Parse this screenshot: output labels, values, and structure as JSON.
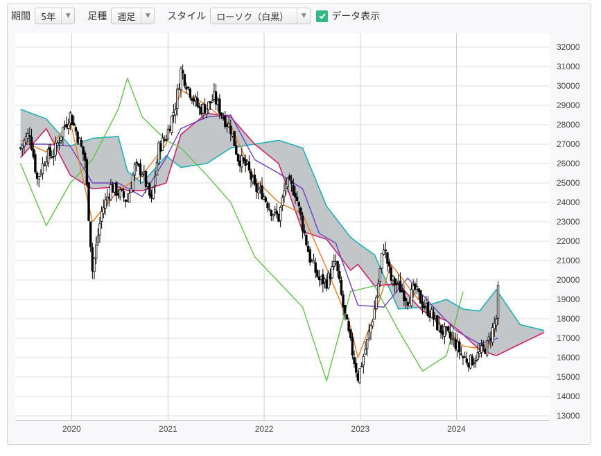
{
  "toolbar": {
    "period_label": "期間",
    "period_value": "5年",
    "interval_label": "足種",
    "interval_value": "週足",
    "style_label": "スタイル",
    "style_value": "ローソク（白黒）",
    "show_data_label": "データ表示",
    "show_data_checked": true
  },
  "chart_data": {
    "type": "candlestick",
    "indicator": "ichimoku",
    "x_tick_labels": [
      "2020",
      "2021",
      "2022",
      "2023",
      "2024"
    ],
    "y_tick_labels": [
      "32000",
      "31000",
      "30000",
      "29000",
      "28000",
      "27000",
      "26000",
      "25000",
      "24000",
      "23000",
      "22000",
      "21000",
      "20000",
      "19000",
      "18000",
      "17000",
      "16000",
      "15000",
      "14000",
      "13000"
    ],
    "ylim": [
      13000,
      32000
    ],
    "grid": true,
    "colors": {
      "price": "#000000",
      "conversion_line": "#f07820",
      "base_line": "#6a3fc4",
      "lagging_span": "#55c040",
      "leading_span_a": "#20b0b8",
      "leading_span_b": "#d0206a",
      "cloud_fill": "#b9bcbe"
    },
    "close_path": [
      [
        "2019-06-21",
        26800
      ],
      [
        "2019-07-26",
        27600
      ],
      [
        "2019-08-23",
        25200
      ],
      [
        "2019-09-27",
        26400
      ],
      [
        "2019-10-25",
        26500
      ],
      [
        "2019-11-29",
        27800
      ],
      [
        "2019-12-27",
        28500
      ],
      [
        "2020-01-24",
        27400
      ],
      [
        "2020-02-21",
        26200
      ],
      [
        "2020-03-20",
        20500
      ],
      [
        "2020-04-24",
        23500
      ],
      [
        "2020-05-29",
        24800
      ],
      [
        "2020-06-26",
        24500
      ],
      [
        "2020-07-31",
        24100
      ],
      [
        "2020-08-28",
        25800
      ],
      [
        "2020-09-25",
        25600
      ],
      [
        "2020-10-30",
        24000
      ],
      [
        "2020-11-27",
        26800
      ],
      [
        "2020-12-25",
        27400
      ],
      [
        "2021-01-29",
        29000
      ],
      [
        "2021-02-19",
        30800
      ],
      [
        "2021-03-26",
        29700
      ],
      [
        "2021-04-30",
        28800
      ],
      [
        "2021-05-28",
        28900
      ],
      [
        "2021-06-25",
        29400
      ],
      [
        "2021-07-30",
        28400
      ],
      [
        "2021-08-27",
        27800
      ],
      [
        "2021-09-24",
        26300
      ],
      [
        "2021-10-29",
        25800
      ],
      [
        "2021-11-26",
        24700
      ],
      [
        "2021-12-24",
        24500
      ],
      [
        "2022-01-28",
        23600
      ],
      [
        "2022-02-25",
        23200
      ],
      [
        "2022-03-25",
        25000
      ],
      [
        "2022-04-28",
        24600
      ],
      [
        "2022-05-27",
        22800
      ],
      [
        "2022-06-24",
        21100
      ],
      [
        "2022-07-29",
        20000
      ],
      [
        "2022-08-26",
        19900
      ],
      [
        "2022-09-30",
        20900
      ],
      [
        "2022-10-28",
        18600
      ],
      [
        "2022-11-25",
        16700
      ],
      [
        "2022-12-23",
        15000
      ],
      [
        "2023-01-27",
        16800
      ],
      [
        "2023-02-24",
        18500
      ],
      [
        "2023-03-31",
        21800
      ],
      [
        "2023-04-28",
        20000
      ],
      [
        "2023-05-26",
        19700
      ],
      [
        "2023-06-30",
        19000
      ],
      [
        "2023-07-28",
        19500
      ],
      [
        "2023-08-25",
        18800
      ],
      [
        "2023-09-29",
        18200
      ],
      [
        "2023-10-27",
        17500
      ],
      [
        "2023-11-24",
        17200
      ],
      [
        "2023-12-29",
        16700
      ],
      [
        "2024-01-26",
        16000
      ],
      [
        "2024-02-23",
        15800
      ],
      [
        "2024-03-29",
        16200
      ],
      [
        "2024-04-26",
        16600
      ],
      [
        "2024-05-31",
        18000
      ],
      [
        "2024-06-07",
        19400
      ]
    ],
    "conversion_line": [
      [
        "2019-06-21",
        27200
      ],
      [
        "2019-09-27",
        26600
      ],
      [
        "2019-12-27",
        28200
      ],
      [
        "2020-03-20",
        23000
      ],
      [
        "2020-06-26",
        24600
      ],
      [
        "2020-09-25",
        25400
      ],
      [
        "2020-12-25",
        27000
      ],
      [
        "2021-02-19",
        29800
      ],
      [
        "2021-05-28",
        29000
      ],
      [
        "2021-08-27",
        28000
      ],
      [
        "2021-11-26",
        25200
      ],
      [
        "2022-02-25",
        24000
      ],
      [
        "2022-05-27",
        23400
      ],
      [
        "2022-08-26",
        20600
      ],
      [
        "2022-11-25",
        17600
      ],
      [
        "2022-12-23",
        16000
      ],
      [
        "2023-02-24",
        18200
      ],
      [
        "2023-04-28",
        20800
      ],
      [
        "2023-07-28",
        19200
      ],
      [
        "2023-10-27",
        17800
      ],
      [
        "2024-01-26",
        16600
      ],
      [
        "2024-04-26",
        16400
      ],
      [
        "2024-06-07",
        17800
      ]
    ],
    "base_line": [
      [
        "2019-06-21",
        27000
      ],
      [
        "2019-09-27",
        27000
      ],
      [
        "2019-12-27",
        26900
      ],
      [
        "2020-03-20",
        25000
      ],
      [
        "2020-06-26",
        25000
      ],
      [
        "2020-09-25",
        24300
      ],
      [
        "2020-12-25",
        26300
      ],
      [
        "2021-02-19",
        27800
      ],
      [
        "2021-05-28",
        28400
      ],
      [
        "2021-08-27",
        28500
      ],
      [
        "2021-11-26",
        26200
      ],
      [
        "2022-02-25",
        25500
      ],
      [
        "2022-05-27",
        24700
      ],
      [
        "2022-07-29",
        22400
      ],
      [
        "2022-09-30",
        21900
      ],
      [
        "2022-12-23",
        18700
      ],
      [
        "2023-03-31",
        18600
      ],
      [
        "2023-06-30",
        20100
      ],
      [
        "2023-09-29",
        18700
      ],
      [
        "2023-12-29",
        17400
      ],
      [
        "2024-03-29",
        16700
      ],
      [
        "2024-06-07",
        17000
      ]
    ],
    "lagging_span": [
      [
        "2019-06-21",
        26000
      ],
      [
        "2019-09-27",
        22800
      ],
      [
        "2019-12-27",
        25000
      ],
      [
        "2020-03-20",
        26200
      ],
      [
        "2020-06-26",
        28800
      ],
      [
        "2020-07-31",
        30400
      ],
      [
        "2020-09-25",
        28400
      ],
      [
        "2020-12-25",
        27200
      ],
      [
        "2021-02-19",
        26800
      ],
      [
        "2021-05-28",
        25400
      ],
      [
        "2021-08-27",
        24000
      ],
      [
        "2021-11-26",
        21200
      ],
      [
        "2022-02-25",
        19900
      ],
      [
        "2022-05-27",
        18600
      ],
      [
        "2022-08-26",
        14800
      ],
      [
        "2022-11-25",
        19400
      ],
      [
        "2023-02-24",
        19700
      ],
      [
        "2023-05-26",
        17400
      ],
      [
        "2023-08-25",
        15300
      ],
      [
        "2023-11-24",
        16100
      ],
      [
        "2024-01-26",
        19400
      ]
    ],
    "leading_span_a": [
      [
        "2019-06-21",
        28800
      ],
      [
        "2019-09-27",
        28300
      ],
      [
        "2019-12-27",
        26900
      ],
      [
        "2020-03-20",
        27300
      ],
      [
        "2020-06-26",
        27400
      ],
      [
        "2020-07-31",
        25600
      ],
      [
        "2020-09-25",
        25000
      ],
      [
        "2020-12-25",
        26400
      ],
      [
        "2021-02-19",
        25800
      ],
      [
        "2021-05-28",
        26000
      ],
      [
        "2021-08-27",
        26800
      ],
      [
        "2021-11-26",
        27000
      ],
      [
        "2022-02-25",
        27200
      ],
      [
        "2022-05-27",
        26800
      ],
      [
        "2022-08-26",
        23800
      ],
      [
        "2022-11-25",
        22200
      ],
      [
        "2022-12-23",
        21900
      ],
      [
        "2023-02-24",
        21300
      ],
      [
        "2023-05-26",
        18500
      ],
      [
        "2023-08-25",
        18600
      ],
      [
        "2023-11-24",
        19000
      ],
      [
        "2024-01-26",
        18500
      ],
      [
        "2024-03-29",
        18400
      ],
      [
        "2024-05-31",
        19500
      ],
      [
        "2024-08-30",
        17700
      ],
      [
        "2024-11-29",
        17400
      ]
    ],
    "leading_span_b": [
      [
        "2019-06-21",
        26300
      ],
      [
        "2019-09-27",
        27800
      ],
      [
        "2019-12-27",
        25400
      ],
      [
        "2020-03-20",
        24700
      ],
      [
        "2020-06-26",
        24800
      ],
      [
        "2020-07-31",
        24600
      ],
      [
        "2020-09-25",
        24600
      ],
      [
        "2020-12-25",
        25000
      ],
      [
        "2021-02-19",
        27500
      ],
      [
        "2021-05-28",
        28600
      ],
      [
        "2021-08-27",
        28400
      ],
      [
        "2021-11-26",
        27000
      ],
      [
        "2022-02-25",
        26000
      ],
      [
        "2022-05-27",
        22500
      ],
      [
        "2022-08-26",
        22100
      ],
      [
        "2022-11-25",
        20500
      ],
      [
        "2022-12-23",
        20800
      ],
      [
        "2023-02-24",
        19700
      ],
      [
        "2023-05-26",
        19800
      ],
      [
        "2023-08-25",
        18400
      ],
      [
        "2023-11-24",
        17900
      ],
      [
        "2024-01-26",
        17200
      ],
      [
        "2024-03-29",
        16400
      ],
      [
        "2024-05-31",
        16100
      ],
      [
        "2024-08-30",
        16700
      ],
      [
        "2024-11-29",
        17300
      ]
    ]
  }
}
